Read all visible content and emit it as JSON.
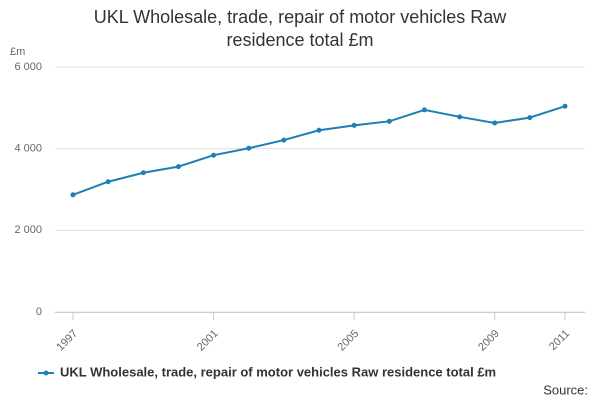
{
  "chart_data": {
    "type": "line",
    "title": "UKL Wholesale, trade, repair of motor vehicles Raw residence total £m",
    "ylabel": "£m",
    "source": "Source:",
    "x": [
      1997,
      1998,
      1999,
      2000,
      2001,
      2002,
      2003,
      2004,
      2005,
      2006,
      2007,
      2008,
      2009,
      2010,
      2011
    ],
    "series": [
      {
        "name": "UKL Wholesale, trade, repair of motor vehicles Raw residence total £m",
        "color": "#1f7fb4",
        "values": [
          2870,
          3190,
          3410,
          3560,
          3840,
          4010,
          4210,
          4450,
          4570,
          4670,
          4950,
          4780,
          4630,
          4760,
          5040
        ]
      }
    ],
    "xlim": [
      1997,
      2011
    ],
    "xticks": [
      1997,
      2001,
      2005,
      2009,
      2011
    ],
    "ylim": [
      0,
      6000
    ],
    "yticks": [
      0,
      {
        "value": 2000,
        "label": "2 000"
      },
      {
        "value": 4000,
        "label": "4 000"
      },
      {
        "value": 6000,
        "label": "6 000"
      }
    ],
    "grid": true
  }
}
